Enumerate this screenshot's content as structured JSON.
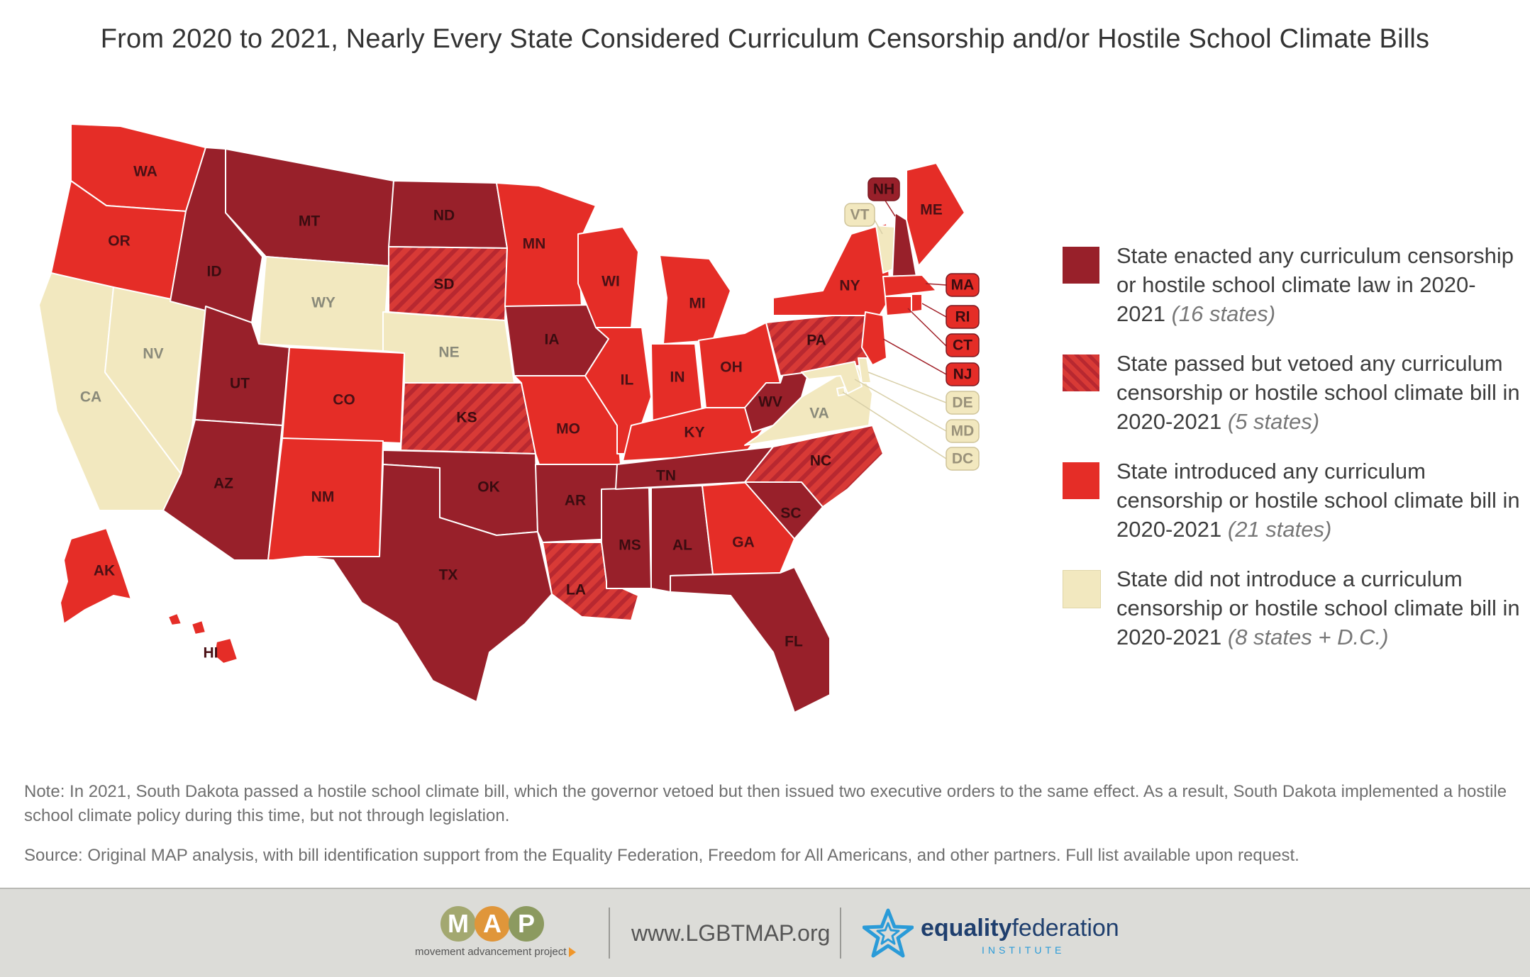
{
  "title": "From 2020 to 2021, Nearly Every State Considered Curriculum Censorship and/or Hostile School Climate Bills",
  "colors": {
    "enacted": "#98202a",
    "vetoed_base": "#d83a36",
    "vetoed_stripe": "#b82830",
    "introduced": "#e52d27",
    "none": "#f2e8bf"
  },
  "legend": [
    {
      "category": "enacted",
      "text": "State enacted any curriculum censorship or hostile school climate law in 2020-2021",
      "count": "(16 states)"
    },
    {
      "category": "vetoed",
      "text": "State passed but vetoed any curriculum censorship or hostile school climate bill in 2020-2021",
      "count": "(5 states)"
    },
    {
      "category": "introduced",
      "text": "State introduced any curriculum censorship or hostile school climate bill in 2020-2021",
      "count": "(21 states)"
    },
    {
      "category": "none",
      "text": "State did not introduce a curriculum censorship or hostile school climate bill in 2020-2021",
      "count": "(8 states + D.C.)"
    }
  ],
  "states": [
    {
      "abbr": "WA",
      "category": "introduced"
    },
    {
      "abbr": "OR",
      "category": "introduced"
    },
    {
      "abbr": "CA",
      "category": "none"
    },
    {
      "abbr": "NV",
      "category": "none"
    },
    {
      "abbr": "ID",
      "category": "enacted"
    },
    {
      "abbr": "MT",
      "category": "enacted"
    },
    {
      "abbr": "WY",
      "category": "none"
    },
    {
      "abbr": "UT",
      "category": "enacted"
    },
    {
      "abbr": "AZ",
      "category": "enacted"
    },
    {
      "abbr": "CO",
      "category": "introduced"
    },
    {
      "abbr": "NM",
      "category": "introduced"
    },
    {
      "abbr": "ND",
      "category": "enacted"
    },
    {
      "abbr": "SD",
      "category": "vetoed"
    },
    {
      "abbr": "NE",
      "category": "none"
    },
    {
      "abbr": "KS",
      "category": "vetoed"
    },
    {
      "abbr": "OK",
      "category": "enacted"
    },
    {
      "abbr": "TX",
      "category": "enacted"
    },
    {
      "abbr": "MN",
      "category": "introduced"
    },
    {
      "abbr": "IA",
      "category": "enacted"
    },
    {
      "abbr": "MO",
      "category": "introduced"
    },
    {
      "abbr": "AR",
      "category": "enacted"
    },
    {
      "abbr": "LA",
      "category": "vetoed"
    },
    {
      "abbr": "WI",
      "category": "introduced"
    },
    {
      "abbr": "IL",
      "category": "introduced"
    },
    {
      "abbr": "MS",
      "category": "enacted"
    },
    {
      "abbr": "MI",
      "category": "introduced"
    },
    {
      "abbr": "IN",
      "category": "introduced"
    },
    {
      "abbr": "OH",
      "category": "introduced"
    },
    {
      "abbr": "KY",
      "category": "introduced"
    },
    {
      "abbr": "TN",
      "category": "enacted"
    },
    {
      "abbr": "AL",
      "category": "enacted"
    },
    {
      "abbr": "GA",
      "category": "introduced"
    },
    {
      "abbr": "FL",
      "category": "enacted"
    },
    {
      "abbr": "SC",
      "category": "enacted"
    },
    {
      "abbr": "NC",
      "category": "vetoed"
    },
    {
      "abbr": "VA",
      "category": "none"
    },
    {
      "abbr": "WV",
      "category": "enacted"
    },
    {
      "abbr": "PA",
      "category": "vetoed"
    },
    {
      "abbr": "NY",
      "category": "introduced"
    },
    {
      "abbr": "VT",
      "category": "none"
    },
    {
      "abbr": "NH",
      "category": "enacted"
    },
    {
      "abbr": "ME",
      "category": "introduced"
    },
    {
      "abbr": "MA",
      "category": "introduced"
    },
    {
      "abbr": "RI",
      "category": "introduced"
    },
    {
      "abbr": "CT",
      "category": "introduced"
    },
    {
      "abbr": "NJ",
      "category": "introduced"
    },
    {
      "abbr": "DE",
      "category": "none"
    },
    {
      "abbr": "MD",
      "category": "none"
    },
    {
      "abbr": "DC",
      "category": "none"
    },
    {
      "abbr": "AK",
      "category": "introduced"
    },
    {
      "abbr": "HI",
      "category": "introduced"
    }
  ],
  "notes": {
    "note": "Note: In 2021, South Dakota passed a hostile school climate bill, which the governor vetoed but then issued two executive orders to the same effect. As a result, South Dakota implemented a hostile school climate policy during this time, but not through legislation.",
    "source": "Source: Original MAP analysis, with bill identification support from the Equality Federation, Freedom for All Americans, and other partners. Full list available upon request."
  },
  "footer": {
    "map_logo_letters": [
      "M",
      "A",
      "P"
    ],
    "map_logo_colors": [
      "#a3a870",
      "#e0963a",
      "#8c9a60"
    ],
    "map_tagline": "movement advancement project",
    "url": "www.LGBTMAP.org",
    "eq_name_bold": "equality",
    "eq_name_regular": "federation",
    "eq_sub": "INSTITUTE"
  }
}
